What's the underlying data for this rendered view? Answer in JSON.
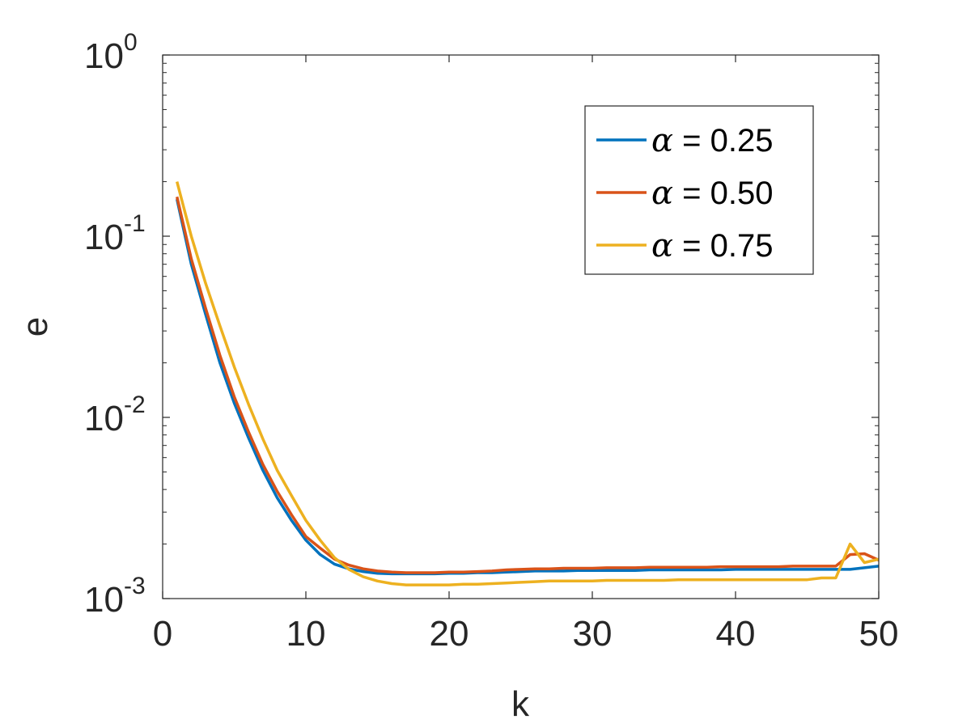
{
  "chart_data": {
    "type": "line",
    "title": "",
    "xlabel": "k",
    "ylabel": "e",
    "xlim": [
      0,
      50
    ],
    "ylim": [
      0.001,
      1
    ],
    "yscale": "log",
    "grid": false,
    "legend_position": "top-right",
    "xticks": [
      {
        "value": 0,
        "label": "0"
      },
      {
        "value": 10,
        "label": "10"
      },
      {
        "value": 20,
        "label": "20"
      },
      {
        "value": 30,
        "label": "30"
      },
      {
        "value": 40,
        "label": "40"
      },
      {
        "value": 50,
        "label": "50"
      }
    ],
    "yticks": [
      {
        "value": 1,
        "base": "10",
        "exp": "0"
      },
      {
        "value": 0.1,
        "base": "10",
        "exp": "-1"
      },
      {
        "value": 0.01,
        "base": "10",
        "exp": "-2"
      },
      {
        "value": 0.001,
        "base": "10",
        "exp": "-3"
      }
    ],
    "x": [
      1,
      2,
      3,
      4,
      5,
      6,
      7,
      8,
      9,
      10,
      11,
      12,
      13,
      14,
      15,
      16,
      17,
      18,
      19,
      20,
      21,
      22,
      23,
      24,
      25,
      26,
      27,
      28,
      29,
      30,
      31,
      32,
      33,
      34,
      35,
      36,
      37,
      38,
      39,
      40,
      41,
      42,
      43,
      44,
      45,
      46,
      47,
      48,
      49,
      50
    ],
    "series": [
      {
        "name": "α = 0.25",
        "symbol": "α",
        "value_text": " = 0.25",
        "color": "#0072BD",
        "values": [
          0.16,
          0.07,
          0.037,
          0.02,
          0.012,
          0.0077,
          0.0051,
          0.0036,
          0.0027,
          0.0021,
          0.00175,
          0.00155,
          0.00146,
          0.00141,
          0.00138,
          0.00137,
          0.00137,
          0.00137,
          0.00137,
          0.00138,
          0.00138,
          0.00139,
          0.00139,
          0.0014,
          0.00141,
          0.00142,
          0.00142,
          0.00142,
          0.00143,
          0.00143,
          0.00143,
          0.00143,
          0.00143,
          0.00144,
          0.00144,
          0.00144,
          0.00144,
          0.00144,
          0.00144,
          0.00145,
          0.00145,
          0.00145,
          0.00145,
          0.00145,
          0.00145,
          0.00145,
          0.00145,
          0.00145,
          0.00148,
          0.00151
        ]
      },
      {
        "name": "α = 0.50",
        "symbol": "α",
        "value_text": " = 0.50",
        "color": "#D95319",
        "values": [
          0.165,
          0.075,
          0.04,
          0.022,
          0.013,
          0.0083,
          0.0055,
          0.0039,
          0.0029,
          0.0022,
          0.0019,
          0.00165,
          0.00153,
          0.00146,
          0.00142,
          0.0014,
          0.00139,
          0.00139,
          0.00139,
          0.0014,
          0.0014,
          0.00141,
          0.00142,
          0.00144,
          0.00145,
          0.00146,
          0.00146,
          0.00147,
          0.00147,
          0.00147,
          0.00148,
          0.00148,
          0.00148,
          0.00149,
          0.00149,
          0.00149,
          0.00149,
          0.00149,
          0.0015,
          0.0015,
          0.0015,
          0.0015,
          0.0015,
          0.00151,
          0.00151,
          0.00151,
          0.00151,
          0.00175,
          0.00177,
          0.00163
        ]
      },
      {
        "name": "α = 0.75",
        "symbol": "α",
        "value_text": " = 0.75",
        "color": "#EDB120",
        "values": [
          0.2,
          0.1,
          0.055,
          0.032,
          0.019,
          0.0118,
          0.0076,
          0.0051,
          0.0037,
          0.0027,
          0.0021,
          0.00168,
          0.00145,
          0.00132,
          0.00125,
          0.00121,
          0.00119,
          0.00119,
          0.00119,
          0.00119,
          0.0012,
          0.0012,
          0.00121,
          0.00122,
          0.00123,
          0.00124,
          0.00125,
          0.00125,
          0.00125,
          0.00125,
          0.00126,
          0.00126,
          0.00126,
          0.00126,
          0.00126,
          0.00127,
          0.00127,
          0.00127,
          0.00127,
          0.00127,
          0.00127,
          0.00127,
          0.00127,
          0.00127,
          0.00127,
          0.0013,
          0.0013,
          0.002,
          0.00158,
          0.00165
        ]
      }
    ]
  }
}
